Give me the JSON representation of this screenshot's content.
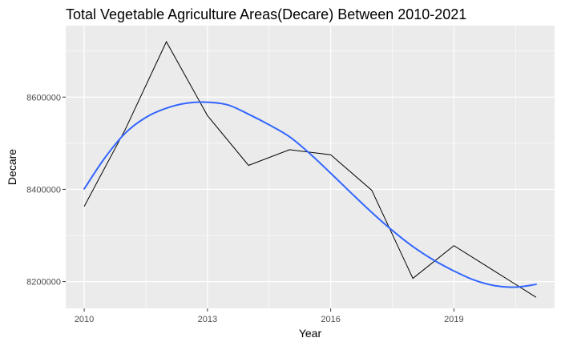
{
  "chart_data": {
    "type": "line",
    "title": "Total Vegetable Agriculture Areas(Decare) Between 2010-2021",
    "xlabel": "Year",
    "ylabel": "Decare",
    "xlim": [
      2009.55,
      2021.45
    ],
    "ylim": [
      8142000,
      8755000
    ],
    "x_ticks": [
      2010,
      2013,
      2016,
      2019
    ],
    "x_tick_labels": [
      "2010",
      "2013",
      "2016",
      "2019"
    ],
    "x_minor_ticks": [
      2011.5,
      2014.5,
      2017.5,
      2020.5
    ],
    "y_ticks": [
      8200000,
      8400000,
      8600000
    ],
    "y_tick_labels": [
      "8200000",
      "8400000",
      "8600000"
    ],
    "y_minor_ticks": [
      8300000,
      8500000,
      8700000
    ],
    "grid": true,
    "legend": "none",
    "series": [
      {
        "type": "line",
        "color": "#000000",
        "x": [
          2010,
          2011,
          2012,
          2013,
          2014,
          2015,
          2016,
          2017,
          2018,
          2019,
          2020,
          2021
        ],
        "y": [
          8363000,
          8530000,
          8720000,
          8560000,
          8452000,
          8486000,
          8475000,
          8398000,
          8207000,
          8278000,
          8222000,
          8166000
        ]
      },
      {
        "type": "smooth",
        "color": "#3366FF",
        "x": [
          2010,
          2010.5,
          2011,
          2011.5,
          2012,
          2012.5,
          2013,
          2013.5,
          2014,
          2014.5,
          2015,
          2015.5,
          2016,
          2016.5,
          2017,
          2017.5,
          2018,
          2018.5,
          2019,
          2019.5,
          2020,
          2020.5,
          2021
        ],
        "y": [
          8401000,
          8468000,
          8522000,
          8556000,
          8576000,
          8587000,
          8589000,
          8583000,
          8563000,
          8540000,
          8514000,
          8477000,
          8435000,
          8392000,
          8350000,
          8311000,
          8276000,
          8247000,
          8223000,
          8203000,
          8191000,
          8188000,
          8194000
        ]
      }
    ]
  }
}
